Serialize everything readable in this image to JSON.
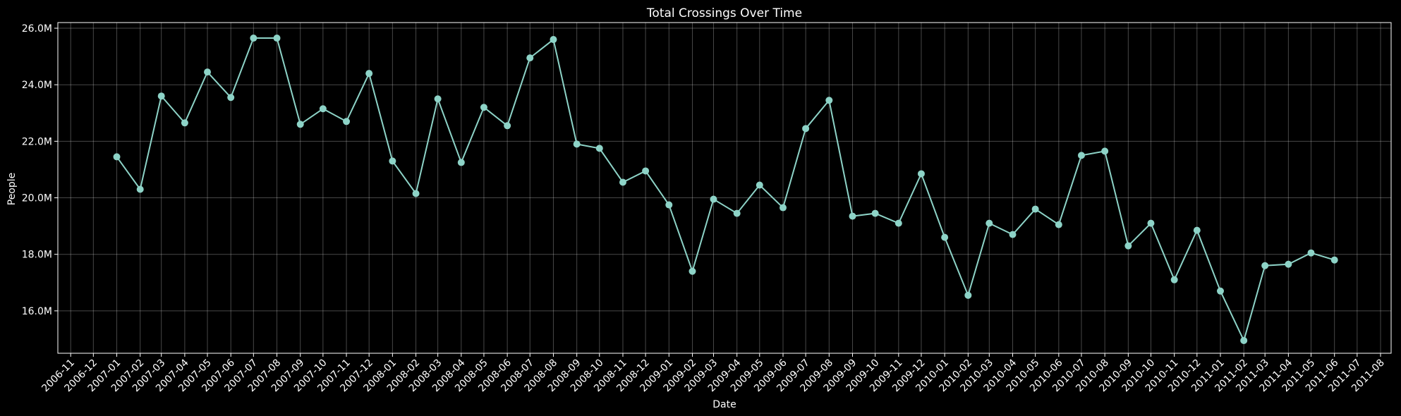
{
  "chart_data": {
    "type": "line",
    "title": "Total Crossings Over Time",
    "xlabel": "Date",
    "ylabel": "People",
    "x_ticks": [
      "2006-11",
      "2006-12",
      "2007-01",
      "2007-02",
      "2007-03",
      "2007-04",
      "2007-05",
      "2007-06",
      "2007-07",
      "2007-08",
      "2007-09",
      "2007-10",
      "2007-11",
      "2007-12",
      "2008-01",
      "2008-02",
      "2008-03",
      "2008-04",
      "2008-05",
      "2008-06",
      "2008-07",
      "2008-08",
      "2008-09",
      "2008-10",
      "2008-11",
      "2008-12",
      "2009-01",
      "2009-02",
      "2009-03",
      "2009-04",
      "2009-05",
      "2009-06",
      "2009-07",
      "2009-08",
      "2009-09",
      "2009-10",
      "2009-11",
      "2009-12",
      "2010-01",
      "2010-02",
      "2010-03",
      "2010-04",
      "2010-05",
      "2010-06",
      "2010-07",
      "2010-08",
      "2010-09",
      "2010-10",
      "2010-11",
      "2010-12",
      "2011-01",
      "2011-02",
      "2011-03",
      "2011-04",
      "2011-05",
      "2011-06",
      "2011-07",
      "2011-08"
    ],
    "y_ticks": [
      {
        "value": 16.0,
        "label": "16.0M"
      },
      {
        "value": 18.0,
        "label": "18.0M"
      },
      {
        "value": 20.0,
        "label": "20.0M"
      },
      {
        "value": 22.0,
        "label": "22.0M"
      },
      {
        "value": 24.0,
        "label": "24.0M"
      },
      {
        "value": 26.0,
        "label": "26.0M"
      }
    ],
    "y_unit": "M",
    "ylim": [
      14.5,
      26.2
    ],
    "xlim": [
      "2006-10-15",
      "2011-08-15"
    ],
    "grid": true,
    "line_color": "#8dd3c7",
    "x": [
      "2007-01",
      "2007-02",
      "2007-03",
      "2007-04",
      "2007-05",
      "2007-06",
      "2007-07",
      "2007-08",
      "2007-09",
      "2007-10",
      "2007-11",
      "2007-12",
      "2008-01",
      "2008-02",
      "2008-03",
      "2008-04",
      "2008-05",
      "2008-06",
      "2008-07",
      "2008-08",
      "2008-09",
      "2008-10",
      "2008-11",
      "2008-12",
      "2009-01",
      "2009-02",
      "2009-03",
      "2009-04",
      "2009-05",
      "2009-06",
      "2009-07",
      "2009-08",
      "2009-09",
      "2009-10",
      "2009-11",
      "2009-12",
      "2010-01",
      "2010-02",
      "2010-03",
      "2010-04",
      "2010-05",
      "2010-06",
      "2010-07",
      "2010-08",
      "2010-09",
      "2010-10",
      "2010-11",
      "2010-12",
      "2011-01",
      "2011-02",
      "2011-03",
      "2011-04",
      "2011-05",
      "2011-06"
    ],
    "values": [
      21.45,
      20.3,
      23.6,
      22.65,
      24.45,
      23.55,
      25.65,
      25.65,
      22.6,
      23.15,
      22.7,
      24.4,
      21.3,
      20.15,
      23.5,
      21.25,
      23.2,
      22.55,
      24.95,
      25.6,
      21.9,
      21.75,
      20.55,
      20.95,
      19.75,
      17.4,
      19.95,
      19.45,
      20.45,
      19.65,
      22.45,
      23.45,
      19.35,
      19.45,
      19.1,
      20.85,
      18.6,
      16.55,
      19.1,
      18.7,
      19.6,
      19.05,
      21.5,
      21.65,
      18.3,
      19.1,
      17.1,
      18.85,
      16.7,
      14.95,
      17.6,
      17.65,
      18.05,
      17.8
    ]
  }
}
